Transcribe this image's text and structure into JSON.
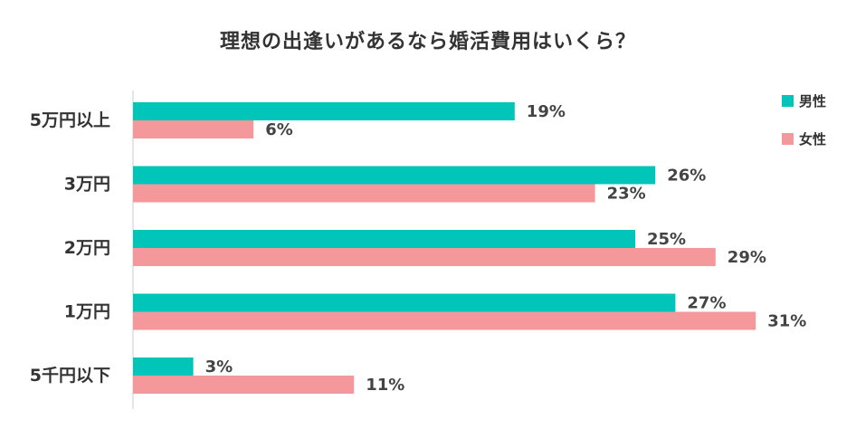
{
  "chart_data": {
    "type": "bar",
    "orientation": "horizontal",
    "title": "理想の出逢いがあるなら婚活費用はいくら？",
    "categories": [
      "5万円以上",
      "3万円",
      "2万円",
      "1万円",
      "5千円以下"
    ],
    "series": [
      {
        "name": "男性",
        "color": "#00c5b8",
        "values": [
          19,
          26,
          25,
          27,
          3
        ]
      },
      {
        "name": "女性",
        "color": "#f4989c",
        "values": [
          6,
          23,
          29,
          31,
          11
        ]
      }
    ],
    "value_suffix": "%",
    "xlim": [
      0,
      35
    ],
    "legend": "top-right",
    "grid": false
  }
}
